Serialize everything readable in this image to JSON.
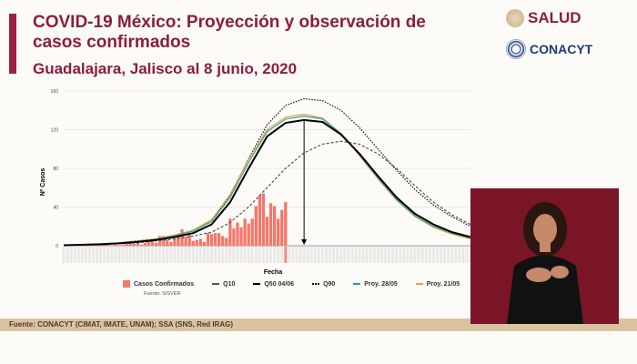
{
  "header": {
    "title": "COVID-19 México: Proyección y observación de casos confirmados",
    "subtitle": "Guadalajara, Jalisco al 8 junio, 2020",
    "logo_salud": "SALUD",
    "logo_conacyt": "CONACYT"
  },
  "footer": {
    "source": "Fuente: CONACYT (CIMAT, IMATE, UNAM);   SSA (SNS, Red IRAG)"
  },
  "chart_data": {
    "type": "bar+line",
    "xlabel": "Fecha",
    "ylabel": "Nº Casos",
    "ylim": [
      0,
      160
    ],
    "yticks": [
      "0",
      "40",
      "80",
      "120",
      "160"
    ],
    "grid": true,
    "legend_placement": "bottom",
    "source_note": "Fuente: SISVER",
    "bars": {
      "name": "Casos Confirmados",
      "color": "#f4776a",
      "values": [
        0,
        0,
        1,
        0,
        1,
        1,
        0,
        1,
        1,
        0,
        1,
        2,
        1,
        0,
        1,
        0,
        1,
        2,
        3,
        2,
        4,
        1,
        3,
        5,
        6,
        3,
        10,
        10,
        6,
        4,
        8,
        9,
        17,
        9,
        13,
        5,
        6,
        7,
        4,
        13,
        12,
        13,
        13,
        10,
        8,
        28,
        18,
        24,
        19,
        28,
        23,
        28,
        41,
        52,
        54,
        30,
        44,
        41,
        28,
        37,
        45
      ]
    },
    "curve_step_days": 5,
    "series": [
      {
        "name": "Q10",
        "color": "#555555",
        "style": "dashed",
        "values": [
          0.4,
          0.8,
          1.2,
          2,
          3,
          5,
          7,
          10,
          14,
          24,
          40,
          60,
          80,
          96,
          105,
          108,
          105,
          95,
          80,
          62,
          45,
          32,
          22
        ]
      },
      {
        "name": "Q50 04/06",
        "color": "#000000",
        "style": "solid",
        "values": [
          0.5,
          1,
          1.5,
          2.5,
          4,
          6,
          9,
          13,
          22,
          45,
          80,
          113,
          127,
          130,
          128,
          115,
          95,
          72,
          50,
          33,
          22,
          14,
          9
        ]
      },
      {
        "name": "Q90",
        "color": "#111111",
        "style": "dotted",
        "values": [
          0.6,
          1.2,
          2,
          3,
          5,
          7,
          11,
          16,
          25,
          52,
          90,
          125,
          145,
          152,
          150,
          140,
          122,
          100,
          78,
          58,
          42,
          30,
          20
        ]
      },
      {
        "name": "Proy. 28/05",
        "color": "#2aa39a",
        "style": "solid",
        "values": [
          0.5,
          1,
          1.6,
          2.7,
          4.3,
          6.5,
          10,
          15,
          25,
          50,
          86,
          118,
          131,
          134,
          131,
          116,
          94,
          70,
          48,
          31,
          20,
          13,
          8
        ]
      },
      {
        "name": "Proy. 21/05",
        "color": "#e8a33a",
        "style": "solid",
        "values": [
          0.5,
          1.1,
          1.7,
          2.8,
          4.5,
          7,
          11,
          16,
          27,
          53,
          89,
          120,
          133,
          136,
          132,
          116,
          93,
          69,
          47,
          30,
          19,
          12,
          7
        ]
      }
    ]
  }
}
